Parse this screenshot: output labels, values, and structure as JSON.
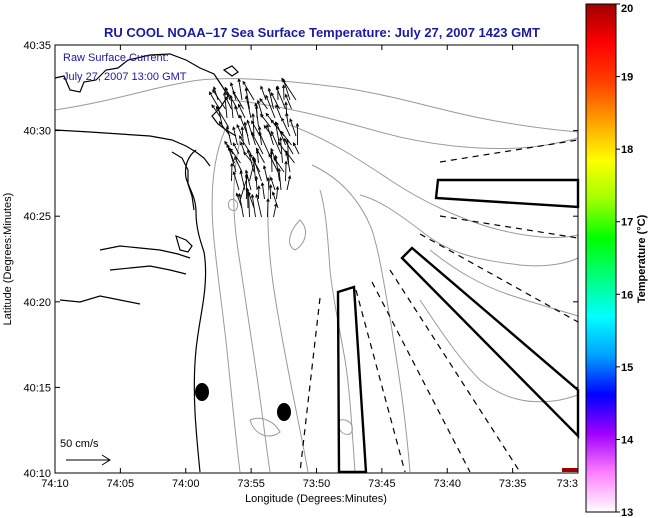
{
  "title": "RU COOL  NOAA–17  Sea Surface Temperature:  July 27, 2007 1423 GMT",
  "annotation": {
    "line1": "Raw Surface Current:",
    "line2": "July 27, 2007 13:00 GMT"
  },
  "scale_label": "50 cm/s",
  "chart_data": {
    "type": "map",
    "xlabel": "Longitude (Degrees:Minutes)",
    "ylabel": "Latitude (Degrees:Minutes)",
    "xticks": [
      "74:10",
      "74:05",
      "74:00",
      "73:55",
      "73:50",
      "73:45",
      "73:40",
      "73:35",
      "73:3"
    ],
    "yticks": [
      "40:10",
      "40:15",
      "40:20",
      "40:25",
      "40:30",
      "40:35"
    ],
    "colorbar": {
      "label": "Temperature (°C)",
      "ticks": [
        "13",
        "14",
        "15",
        "16",
        "17",
        "18",
        "19",
        "20"
      ],
      "min": 13,
      "max": 20,
      "colors": [
        "#ffffff",
        "#ff80ff",
        "#a000ff",
        "#0000ff",
        "#00a0ff",
        "#00ffff",
        "#00ff80",
        "#00ff00",
        "#a0ff00",
        "#ffff00",
        "#ffa000",
        "#ff4000",
        "#ff0000",
        "#a00000"
      ]
    },
    "markers": [
      {
        "type": "filled-ellipse",
        "lon": -74.0,
        "lat": 40.245
      },
      {
        "type": "filled-ellipse",
        "lon": -73.962,
        "lat": 40.225
      }
    ]
  },
  "colors": {
    "title": "#1a1aa6",
    "frame": "#000000",
    "coast": "#000000",
    "contour": "#9a9a9a",
    "vector": "#000000"
  }
}
